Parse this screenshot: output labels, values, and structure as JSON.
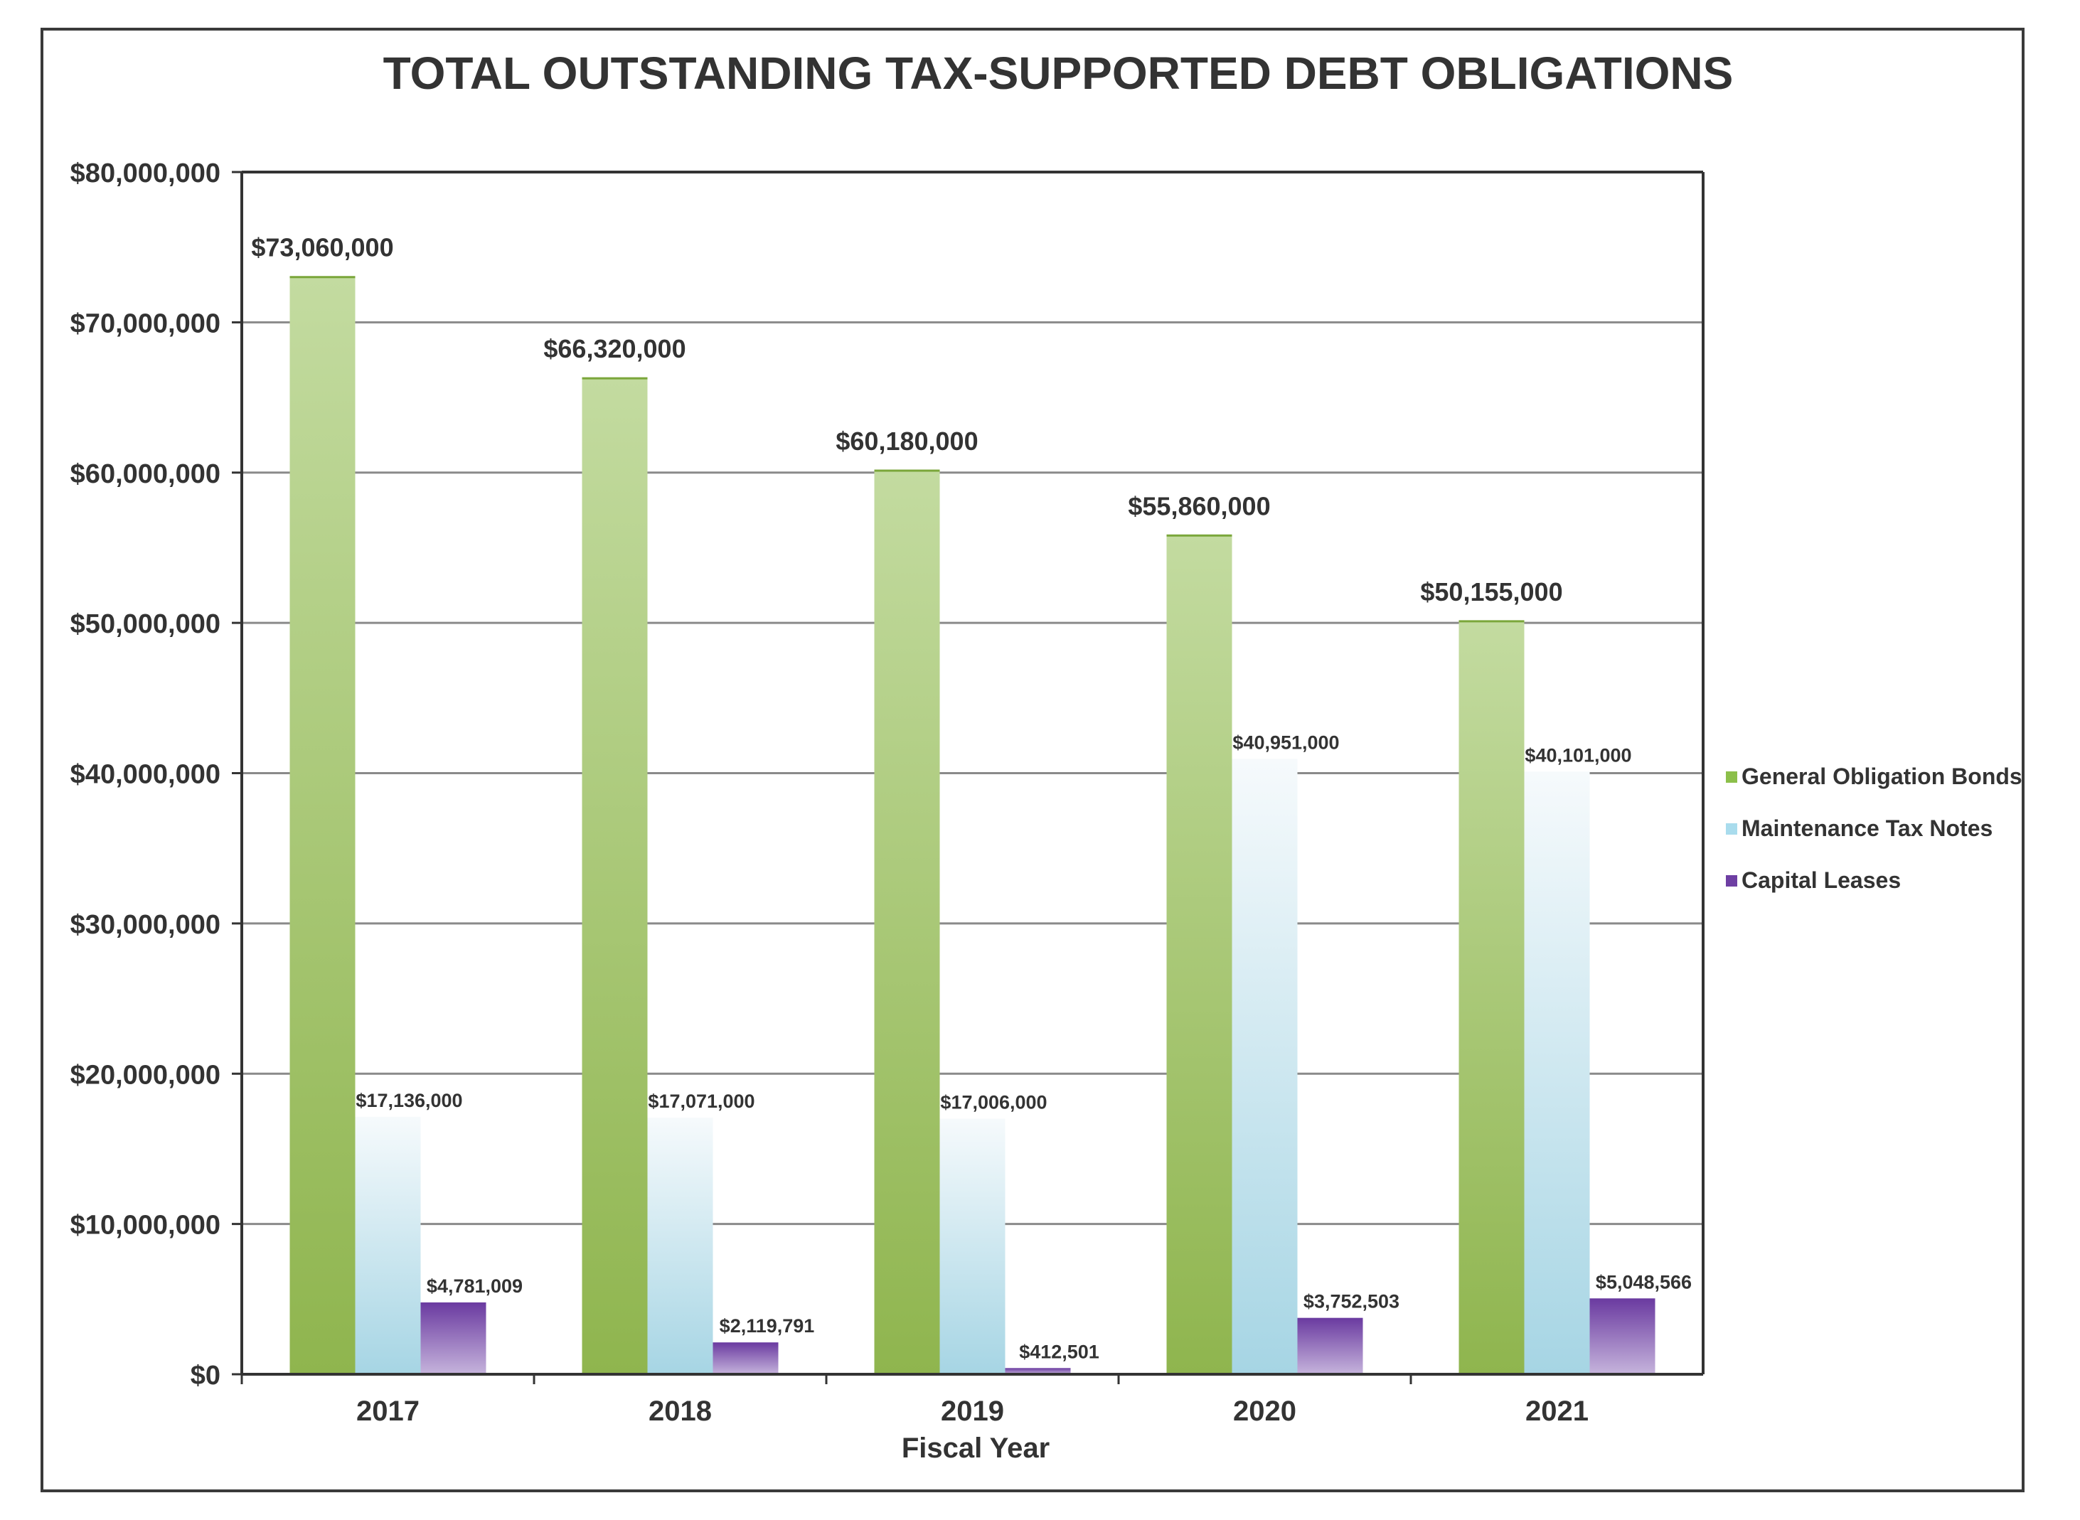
{
  "chart_data": {
    "type": "bar",
    "title": "TOTAL OUTSTANDING TAX-SUPPORTED DEBT OBLIGATIONS",
    "xlabel": "Fiscal Year",
    "ylabel": "",
    "ylim": [
      0,
      80000000
    ],
    "yticks": [
      0,
      10000000,
      20000000,
      30000000,
      40000000,
      50000000,
      60000000,
      70000000,
      80000000
    ],
    "ytick_labels": [
      "$0",
      "$10,000,000",
      "$20,000,000",
      "$30,000,000",
      "$40,000,000",
      "$50,000,000",
      "$60,000,000",
      "$70,000,000",
      "$80,000,000"
    ],
    "grid": true,
    "legend_position": "right",
    "categories": [
      "2017",
      "2018",
      "2019",
      "2020",
      "2021"
    ],
    "series": [
      {
        "name": "General Obligation Bonds",
        "values": [
          73060000,
          66320000,
          60180000,
          55860000,
          50155000
        ],
        "labels": [
          "$73,060,000",
          "$66,320,000",
          "$60,180,000",
          "$55,860,000",
          "$50,155,000"
        ],
        "color_top": "#c3dba0",
        "color_bottom": "#8fb54e",
        "legend_color": "#8cbf4a"
      },
      {
        "name": "Maintenance Tax Notes",
        "values": [
          17136000,
          17071000,
          17006000,
          40951000,
          40101000
        ],
        "labels": [
          "$17,136,000",
          "$17,071,000",
          "$17,006,000",
          "$40,951,000",
          "$40,101,000"
        ],
        "color_top": "#f6fafc",
        "color_bottom": "#a6d5e4",
        "legend_color": "#a9dced"
      },
      {
        "name": "Capital Leases",
        "values": [
          4781009,
          2119791,
          412501,
          3752503,
          5048566
        ],
        "labels": [
          "$4,781,009",
          "$2,119,791",
          "$412,501",
          "$3,752,503",
          "$5,048,566"
        ],
        "color_top": "#6a3aa0",
        "color_bottom": "#c6b4dc",
        "legend_color": "#6e3fa3"
      }
    ]
  }
}
